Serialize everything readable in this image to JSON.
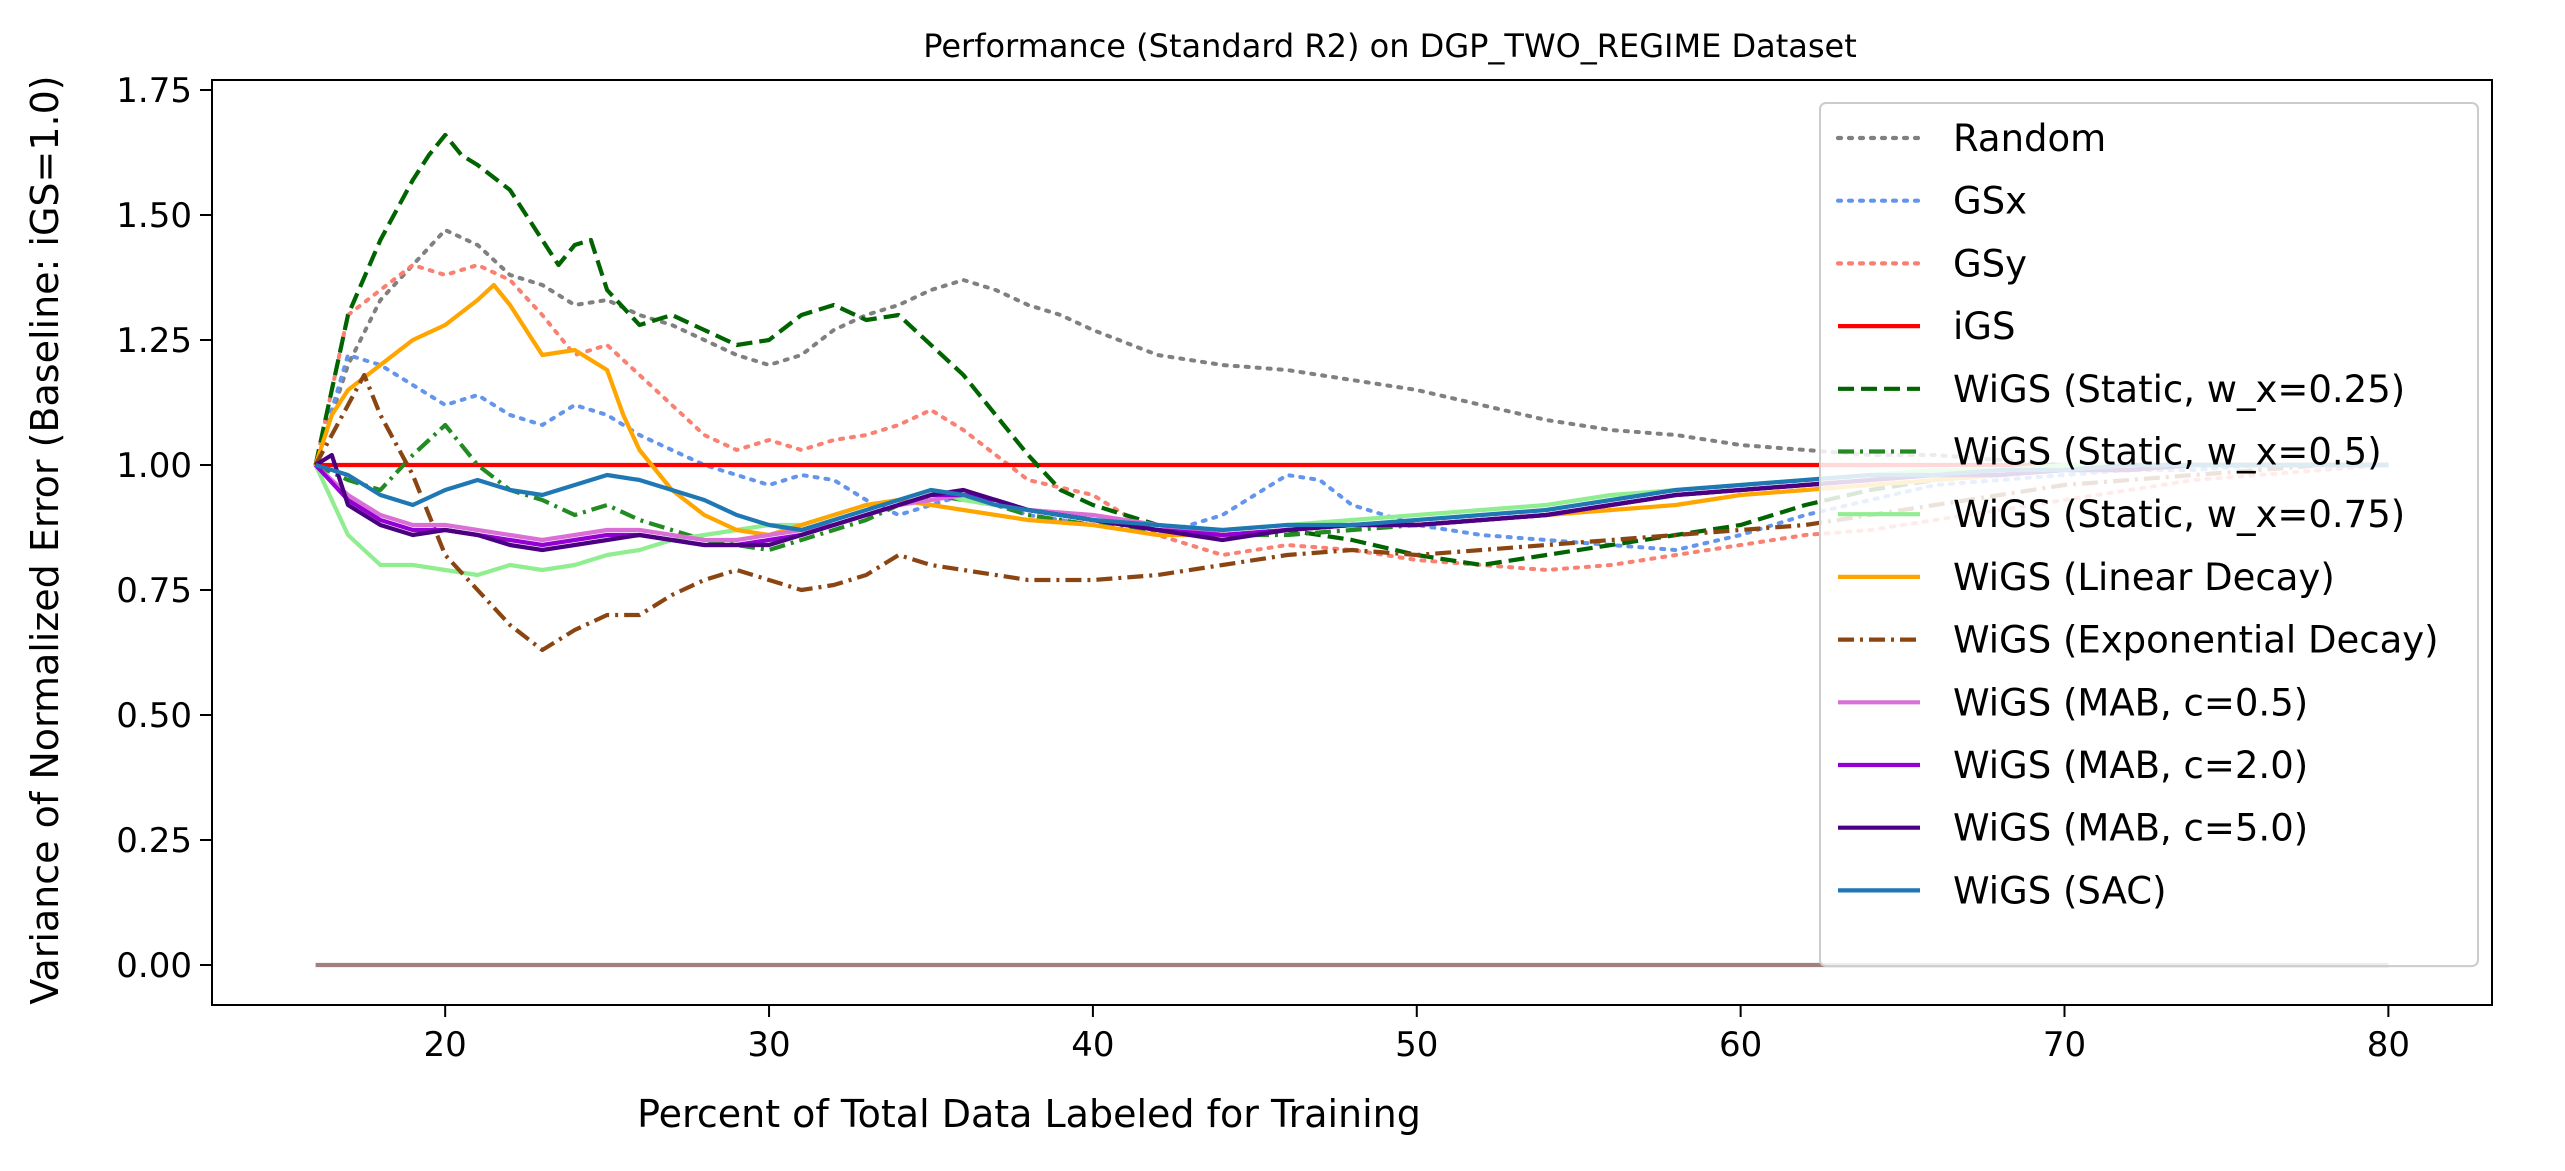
{
  "chart_data": {
    "type": "line",
    "title": "Performance (Standard R2) on DGP_TWO_REGIME Dataset",
    "xlabel": "Percent of Total Data Labeled for Training",
    "ylabel": "Variance of Normalized Error (Baseline: iGS=1.0)",
    "xlim": [
      12.8,
      83.2
    ],
    "ylim": [
      -0.08,
      1.77
    ],
    "xticks": [
      20,
      30,
      40,
      50,
      60,
      70,
      80
    ],
    "yticks": [
      0.0,
      0.25,
      0.5,
      0.75,
      1.0,
      1.25,
      1.5,
      1.75
    ],
    "xtick_labels": [
      "20",
      "30",
      "40",
      "50",
      "60",
      "70",
      "80"
    ],
    "ytick_labels": [
      "0.00",
      "0.25",
      "0.50",
      "0.75",
      "1.00",
      "1.25",
      "1.50",
      "1.75"
    ],
    "grid": false,
    "legend_position": "top-right",
    "series": [
      {
        "name": "Random",
        "color": "#808080",
        "dash": "dotted",
        "x": [
          16,
          17,
          18,
          19,
          20,
          21,
          22,
          23,
          24,
          25,
          26,
          27,
          28,
          29,
          30,
          31,
          32,
          33,
          34,
          35,
          36,
          37,
          38,
          39,
          40,
          42,
          44,
          46,
          48,
          50,
          52,
          54,
          56,
          58,
          60,
          62,
          64,
          66,
          68,
          70,
          72,
          74,
          76,
          78,
          80
        ],
        "y": [
          1.0,
          1.2,
          1.33,
          1.4,
          1.47,
          1.44,
          1.38,
          1.36,
          1.32,
          1.33,
          1.3,
          1.28,
          1.25,
          1.22,
          1.2,
          1.22,
          1.27,
          1.3,
          1.32,
          1.35,
          1.37,
          1.35,
          1.32,
          1.3,
          1.27,
          1.22,
          1.2,
          1.19,
          1.17,
          1.15,
          1.12,
          1.09,
          1.07,
          1.06,
          1.04,
          1.03,
          1.02,
          1.02,
          1.01,
          1.0,
          1.0,
          1.0,
          1.0,
          1.0,
          1.0
        ]
      },
      {
        "name": "GSx",
        "color": "#6495ed",
        "dash": "dotted",
        "x": [
          16,
          17,
          18,
          19,
          20,
          21,
          22,
          23,
          24,
          25,
          26,
          27,
          28,
          29,
          30,
          31,
          32,
          33,
          34,
          35,
          36,
          37,
          38,
          40,
          42,
          44,
          46,
          47,
          48,
          50,
          52,
          54,
          56,
          58,
          60,
          62,
          64,
          66,
          68,
          70,
          72,
          74,
          76,
          78,
          80
        ],
        "y": [
          1.0,
          1.22,
          1.2,
          1.16,
          1.12,
          1.14,
          1.1,
          1.08,
          1.12,
          1.1,
          1.06,
          1.03,
          1.0,
          0.98,
          0.96,
          0.98,
          0.97,
          0.93,
          0.9,
          0.92,
          0.94,
          0.92,
          0.9,
          0.88,
          0.86,
          0.9,
          0.98,
          0.97,
          0.92,
          0.88,
          0.86,
          0.85,
          0.84,
          0.83,
          0.86,
          0.9,
          0.93,
          0.96,
          0.97,
          0.98,
          0.99,
          0.99,
          1.0,
          1.0,
          1.0
        ]
      },
      {
        "name": "GSy",
        "color": "#fa8072",
        "dash": "dotted",
        "x": [
          16,
          17,
          18,
          19,
          20,
          21,
          22,
          23,
          24,
          25,
          26,
          27,
          28,
          29,
          30,
          31,
          32,
          33,
          34,
          35,
          36,
          37,
          38,
          40,
          42,
          44,
          46,
          48,
          50,
          52,
          54,
          56,
          58,
          60,
          62,
          64,
          66,
          68,
          70,
          72,
          74,
          76,
          78,
          80
        ],
        "y": [
          1.0,
          1.3,
          1.35,
          1.4,
          1.38,
          1.4,
          1.37,
          1.3,
          1.22,
          1.24,
          1.18,
          1.12,
          1.06,
          1.03,
          1.05,
          1.03,
          1.05,
          1.06,
          1.08,
          1.11,
          1.07,
          1.02,
          0.97,
          0.94,
          0.86,
          0.82,
          0.84,
          0.83,
          0.81,
          0.8,
          0.79,
          0.8,
          0.82,
          0.84,
          0.86,
          0.87,
          0.89,
          0.91,
          0.93,
          0.95,
          0.97,
          0.98,
          0.99,
          1.0
        ]
      },
      {
        "name": "iGS",
        "color": "#ff0000",
        "dash": "solid",
        "x": [
          16,
          80
        ],
        "y": [
          1.0,
          1.0
        ]
      },
      {
        "name": "WiGS (Static, w_x=0.25)",
        "color": "#006400",
        "dash": "dashed",
        "x": [
          16,
          17,
          18,
          19,
          19.5,
          20,
          20.5,
          21,
          22,
          23,
          23.5,
          24,
          24.5,
          25,
          26,
          27,
          28,
          29,
          30,
          31,
          32,
          33,
          34,
          35,
          36,
          37,
          38,
          39,
          40,
          42,
          44,
          46,
          48,
          50,
          52,
          54,
          56,
          58,
          60,
          62,
          64,
          66,
          68,
          70,
          72,
          74,
          76,
          78,
          80
        ],
        "y": [
          1.0,
          1.3,
          1.45,
          1.57,
          1.62,
          1.66,
          1.62,
          1.6,
          1.55,
          1.45,
          1.4,
          1.44,
          1.45,
          1.35,
          1.28,
          1.3,
          1.27,
          1.24,
          1.25,
          1.3,
          1.32,
          1.29,
          1.3,
          1.24,
          1.18,
          1.1,
          1.02,
          0.95,
          0.92,
          0.88,
          0.86,
          0.87,
          0.85,
          0.82,
          0.8,
          0.82,
          0.84,
          0.86,
          0.88,
          0.92,
          0.95,
          0.97,
          0.98,
          0.99,
          1.0,
          1.0,
          1.0,
          1.0,
          1.0
        ]
      },
      {
        "name": "WiGS (Static, w_x=0.5)",
        "color": "#228b22",
        "dash": "dashdot",
        "x": [
          16,
          17,
          18,
          19,
          20,
          21,
          22,
          23,
          24,
          25,
          26,
          27,
          28,
          29,
          30,
          31,
          32,
          33,
          34,
          35,
          36,
          37,
          38,
          40,
          42,
          44,
          46,
          48,
          50,
          52,
          54,
          56,
          58,
          60,
          62,
          64,
          66,
          68,
          70,
          72,
          74,
          76,
          78,
          80
        ],
        "y": [
          1.0,
          0.97,
          0.95,
          1.02,
          1.08,
          1.0,
          0.95,
          0.93,
          0.9,
          0.92,
          0.89,
          0.87,
          0.85,
          0.84,
          0.83,
          0.85,
          0.87,
          0.89,
          0.92,
          0.94,
          0.93,
          0.92,
          0.9,
          0.88,
          0.87,
          0.86,
          0.86,
          0.87,
          0.88,
          0.89,
          0.9,
          0.92,
          0.94,
          0.95,
          0.96,
          0.97,
          0.98,
          0.98,
          0.99,
          0.99,
          1.0,
          1.0,
          1.0,
          1.0
        ]
      },
      {
        "name": "WiGS (Static, w_x=0.75)",
        "color": "#90ee90",
        "dash": "solid",
        "x": [
          16,
          17,
          18,
          19,
          20,
          21,
          22,
          23,
          24,
          25,
          26,
          27,
          28,
          29,
          30,
          31,
          32,
          33,
          34,
          35,
          36,
          37,
          38,
          40,
          42,
          44,
          46,
          48,
          50,
          52,
          54,
          56,
          58,
          60,
          62,
          64,
          66,
          68,
          70,
          72,
          74,
          76,
          78,
          80
        ],
        "y": [
          1.0,
          0.86,
          0.8,
          0.8,
          0.79,
          0.78,
          0.8,
          0.79,
          0.8,
          0.82,
          0.83,
          0.85,
          0.86,
          0.87,
          0.88,
          0.88,
          0.9,
          0.92,
          0.93,
          0.95,
          0.93,
          0.92,
          0.91,
          0.89,
          0.88,
          0.87,
          0.88,
          0.89,
          0.9,
          0.91,
          0.92,
          0.94,
          0.95,
          0.96,
          0.97,
          0.98,
          0.99,
          0.99,
          1.0,
          1.0,
          1.0,
          1.0,
          1.0,
          1.0
        ]
      },
      {
        "name": "WiGS (Linear Decay)",
        "color": "#ffa500",
        "dash": "solid",
        "x": [
          16,
          16.5,
          17,
          18,
          19,
          20,
          21,
          21.5,
          22,
          23,
          24,
          25,
          25.5,
          26,
          27,
          28,
          29,
          30,
          31,
          32,
          33,
          34,
          35,
          36,
          37,
          38,
          40,
          42,
          44,
          46,
          48,
          50,
          52,
          54,
          56,
          58,
          60,
          62,
          64,
          66,
          68,
          70,
          72,
          74,
          76,
          78,
          80
        ],
        "y": [
          1.0,
          1.1,
          1.15,
          1.2,
          1.25,
          1.28,
          1.33,
          1.36,
          1.32,
          1.22,
          1.23,
          1.19,
          1.1,
          1.03,
          0.95,
          0.9,
          0.87,
          0.86,
          0.88,
          0.9,
          0.92,
          0.93,
          0.92,
          0.91,
          0.9,
          0.89,
          0.88,
          0.86,
          0.86,
          0.87,
          0.88,
          0.88,
          0.89,
          0.9,
          0.91,
          0.92,
          0.94,
          0.95,
          0.96,
          0.97,
          0.98,
          0.99,
          0.99,
          1.0,
          1.0,
          1.0,
          1.0
        ]
      },
      {
        "name": "WiGS (Exponential Decay)",
        "color": "#8b4513",
        "dash": "dashdot",
        "x": [
          16,
          17,
          17.5,
          18,
          19,
          20,
          21,
          22,
          23,
          24,
          25,
          26,
          27,
          28,
          29,
          30,
          31,
          32,
          33,
          34,
          35,
          36,
          37,
          38,
          40,
          42,
          44,
          46,
          48,
          50,
          52,
          54,
          56,
          58,
          60,
          62,
          64,
          66,
          68,
          70,
          72,
          74,
          76,
          78,
          80
        ],
        "y": [
          1.0,
          1.12,
          1.18,
          1.1,
          0.98,
          0.82,
          0.75,
          0.68,
          0.63,
          0.67,
          0.7,
          0.7,
          0.74,
          0.77,
          0.79,
          0.77,
          0.75,
          0.76,
          0.78,
          0.82,
          0.8,
          0.79,
          0.78,
          0.77,
          0.77,
          0.78,
          0.8,
          0.82,
          0.83,
          0.82,
          0.83,
          0.84,
          0.85,
          0.86,
          0.87,
          0.88,
          0.9,
          0.92,
          0.94,
          0.96,
          0.97,
          0.98,
          0.99,
          1.0,
          1.0
        ]
      },
      {
        "name": "WiGS (MAB, c=0.5)",
        "color": "#da70d6",
        "dash": "solid",
        "x": [
          16,
          17,
          18,
          19,
          20,
          21,
          22,
          23,
          24,
          25,
          26,
          27,
          28,
          29,
          30,
          31,
          32,
          33,
          34,
          35,
          36,
          37,
          38,
          40,
          42,
          44,
          46,
          48,
          50,
          52,
          54,
          56,
          58,
          60,
          62,
          64,
          66,
          68,
          70,
          72,
          74,
          76,
          78,
          80
        ],
        "y": [
          1.0,
          0.94,
          0.9,
          0.88,
          0.88,
          0.87,
          0.86,
          0.85,
          0.86,
          0.87,
          0.87,
          0.86,
          0.85,
          0.85,
          0.86,
          0.87,
          0.88,
          0.9,
          0.92,
          0.93,
          0.94,
          0.93,
          0.91,
          0.9,
          0.88,
          0.86,
          0.87,
          0.88,
          0.88,
          0.89,
          0.9,
          0.92,
          0.94,
          0.95,
          0.96,
          0.97,
          0.98,
          0.98,
          0.99,
          0.99,
          1.0,
          1.0,
          1.0,
          1.0
        ]
      },
      {
        "name": "WiGS (MAB, c=2.0)",
        "color": "#9400d3",
        "dash": "solid",
        "x": [
          16,
          17,
          18,
          19,
          20,
          21,
          22,
          23,
          24,
          25,
          26,
          27,
          28,
          29,
          30,
          31,
          32,
          33,
          34,
          35,
          36,
          37,
          38,
          40,
          42,
          44,
          46,
          48,
          50,
          52,
          54,
          56,
          58,
          60,
          62,
          64,
          66,
          68,
          70,
          72,
          74,
          76,
          78,
          80
        ],
        "y": [
          1.0,
          0.93,
          0.89,
          0.87,
          0.87,
          0.86,
          0.85,
          0.84,
          0.85,
          0.86,
          0.86,
          0.85,
          0.84,
          0.84,
          0.85,
          0.86,
          0.88,
          0.9,
          0.92,
          0.94,
          0.94,
          0.93,
          0.91,
          0.89,
          0.87,
          0.86,
          0.87,
          0.88,
          0.88,
          0.89,
          0.9,
          0.92,
          0.94,
          0.95,
          0.96,
          0.97,
          0.98,
          0.98,
          0.99,
          0.99,
          1.0,
          1.0,
          1.0,
          1.0
        ]
      },
      {
        "name": "WiGS (MAB, c=5.0)",
        "color": "#4b0082",
        "dash": "solid",
        "x": [
          16,
          16.5,
          17,
          18,
          19,
          20,
          21,
          22,
          23,
          24,
          25,
          26,
          27,
          28,
          29,
          30,
          31,
          32,
          33,
          34,
          35,
          36,
          37,
          38,
          40,
          42,
          44,
          46,
          48,
          50,
          52,
          54,
          56,
          58,
          60,
          62,
          64,
          66,
          68,
          70,
          72,
          74,
          76,
          78,
          80
        ],
        "y": [
          1.0,
          1.02,
          0.92,
          0.88,
          0.86,
          0.87,
          0.86,
          0.84,
          0.83,
          0.84,
          0.85,
          0.86,
          0.85,
          0.84,
          0.84,
          0.84,
          0.86,
          0.88,
          0.9,
          0.92,
          0.94,
          0.95,
          0.93,
          0.91,
          0.89,
          0.87,
          0.85,
          0.87,
          0.88,
          0.88,
          0.89,
          0.9,
          0.92,
          0.94,
          0.95,
          0.96,
          0.97,
          0.98,
          0.98,
          0.99,
          0.99,
          1.0,
          1.0,
          1.0,
          1.0
        ]
      },
      {
        "name": "WiGS (SAC)",
        "color": "#1f77b4",
        "dash": "solid",
        "x": [
          16,
          17,
          18,
          19,
          20,
          21,
          22,
          23,
          24,
          25,
          26,
          27,
          28,
          29,
          30,
          31,
          32,
          33,
          34,
          35,
          36,
          37,
          38,
          40,
          42,
          44,
          46,
          48,
          50,
          52,
          54,
          56,
          58,
          60,
          62,
          64,
          66,
          68,
          70,
          72,
          74,
          76,
          78,
          80
        ],
        "y": [
          1.0,
          0.98,
          0.94,
          0.92,
          0.95,
          0.97,
          0.95,
          0.94,
          0.96,
          0.98,
          0.97,
          0.95,
          0.93,
          0.9,
          0.88,
          0.87,
          0.89,
          0.91,
          0.93,
          0.95,
          0.94,
          0.92,
          0.91,
          0.89,
          0.88,
          0.87,
          0.88,
          0.88,
          0.89,
          0.9,
          0.91,
          0.93,
          0.95,
          0.96,
          0.97,
          0.98,
          0.98,
          0.99,
          0.99,
          1.0,
          1.0,
          1.0,
          1.0,
          1.0
        ]
      },
      {
        "name": "",
        "color": "#a08080",
        "dash": "solid",
        "x": [
          16,
          80
        ],
        "y": [
          0.0,
          0.0
        ]
      }
    ]
  }
}
